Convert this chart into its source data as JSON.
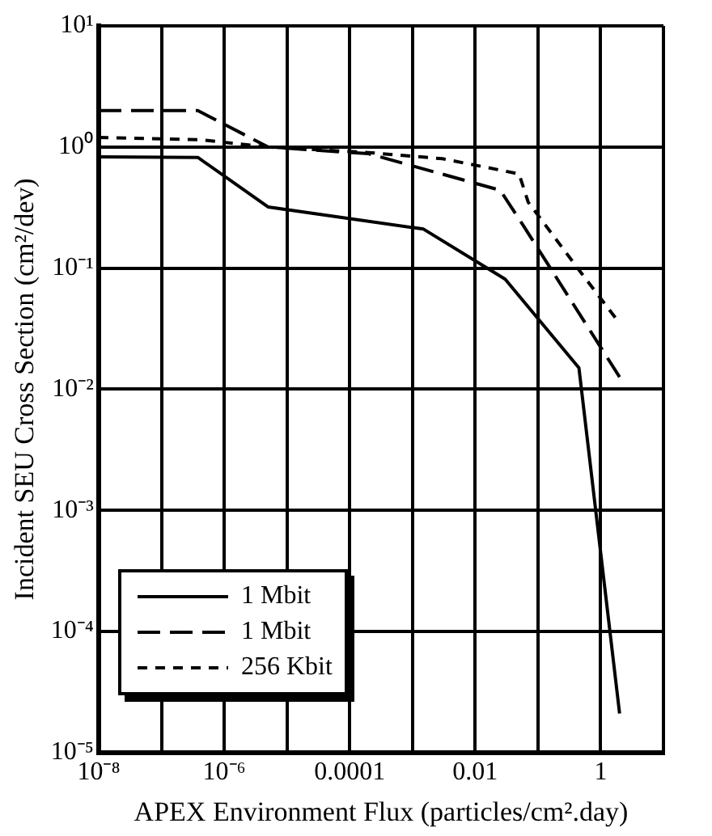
{
  "chart_data": {
    "type": "line",
    "xlabel": "APEX Environment Flux (particles/cm².day)",
    "ylabel": "Incident SEU Cross Section (cm²/dev)",
    "log": "xy",
    "grid": true,
    "legend": "bottom left",
    "marker": "none",
    "xlim": [
      1e-08,
      10
    ],
    "xticks": [
      {
        "value": 1e-08,
        "label": "10⁻⁸"
      },
      {
        "value": 1e-07,
        "label": null
      },
      {
        "value": 1e-06,
        "label": "10⁻⁶"
      },
      {
        "value": 1e-05,
        "label": null
      },
      0.0001,
      {
        "value": 0.001,
        "label": null
      },
      0.01,
      {
        "value": 0.1,
        "label": null
      },
      1,
      {
        "value": 10,
        "label": null
      }
    ],
    "ylim": [
      1e-05,
      10
    ],
    "yticks": [
      {
        "value": 1e-05,
        "label": "10⁻⁵"
      },
      {
        "value": 0.0001,
        "label": "10⁻⁴"
      },
      {
        "value": 0.001,
        "label": "10⁻³"
      },
      {
        "value": 0.01,
        "label": "10⁻²"
      },
      {
        "value": 0.1,
        "label": "10⁻¹"
      },
      {
        "value": 1,
        "label": "10⁰"
      },
      {
        "value": 10,
        "label": "10¹"
      }
    ],
    "series": [
      {
        "name": "1 Mbit",
        "color": "#000000",
        "line_style": "solid",
        "x": [
          1e-08,
          3.8e-07,
          5e-06,
          0.0015,
          0.03,
          0.45,
          2.0
        ],
        "values": [
          0.83,
          0.82,
          0.32,
          0.21,
          0.081,
          0.015,
          2.1e-05
        ]
      },
      {
        "name": "1 Mbit",
        "color": "#000000",
        "line_style": "dashed",
        "x": [
          1e-08,
          3.8e-07,
          5e-06,
          0.0002,
          0.025,
          0.06,
          2.0
        ],
        "values": [
          2.0,
          2.0,
          1.0,
          0.88,
          0.44,
          0.22,
          0.0126
        ]
      },
      {
        "name": "256 Kbit",
        "color": "#000000",
        "line_style": "dotted",
        "x": [
          1e-08,
          4e-07,
          5e-06,
          0.0002,
          0.003,
          0.05,
          0.07,
          0.5,
          2.0
        ],
        "values": [
          1.2,
          1.15,
          1.0,
          0.9,
          0.8,
          0.6,
          0.35,
          0.09,
          0.035
        ]
      }
    ]
  }
}
